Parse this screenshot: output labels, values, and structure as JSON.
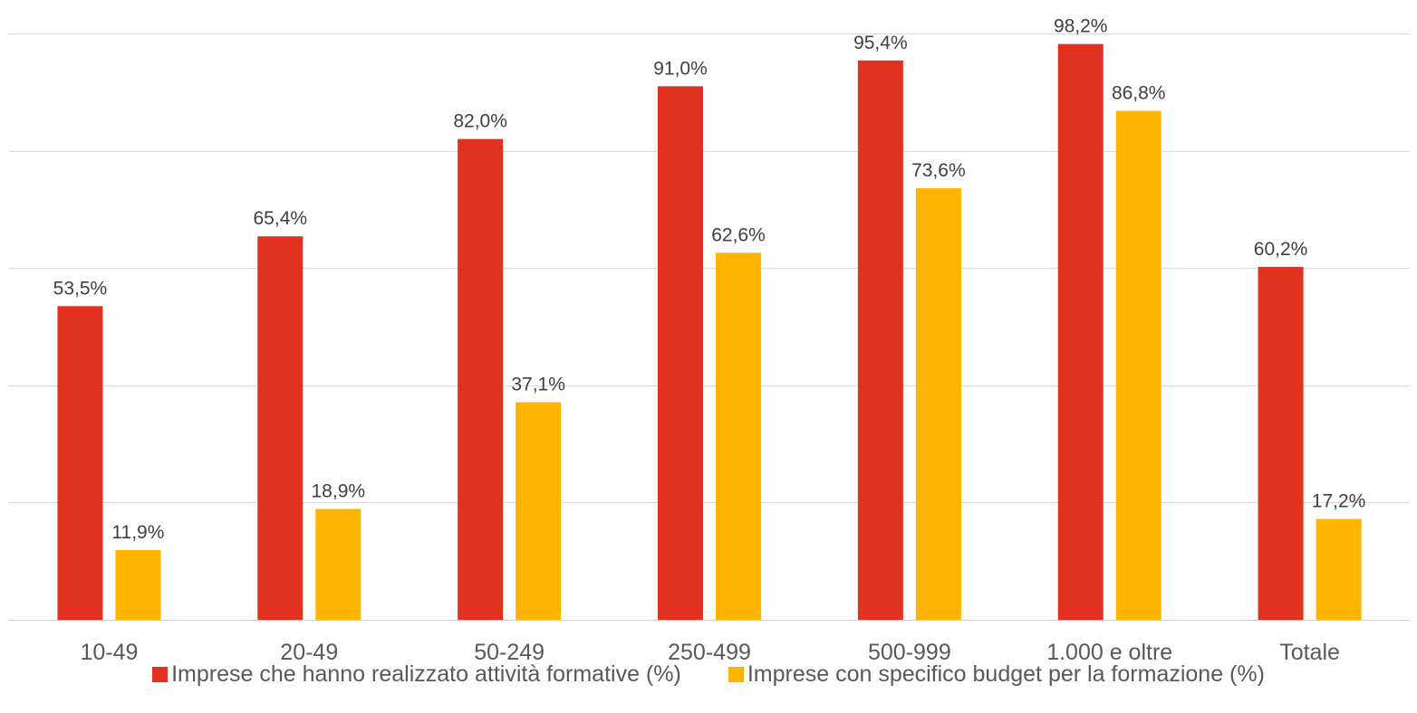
{
  "chart_data": {
    "type": "bar",
    "categories": [
      "10-49",
      "20-49",
      "50-249",
      "250-499",
      "500-999",
      "1.000 e oltre",
      "Totale"
    ],
    "series": [
      {
        "name": "Imprese che hanno realizzato attività formative (%)",
        "color": "#E0321F",
        "values": [
          53.5,
          65.4,
          82.0,
          91.0,
          95.4,
          98.2,
          60.2
        ],
        "labels": [
          "53,5%",
          "65,4%",
          "82,0%",
          "91,0%",
          "95,4%",
          "98,2%",
          "60,2%"
        ]
      },
      {
        "name": "Imprese con specifico budget per la formazione (%)",
        "color": "#FFB400",
        "values": [
          11.9,
          18.9,
          37.1,
          62.6,
          73.6,
          86.8,
          17.2
        ],
        "labels": [
          "11,9%",
          "18,9%",
          "37,1%",
          "62,6%",
          "73,6%",
          "86,8%",
          "17,2%"
        ]
      }
    ],
    "ylim": [
      0,
      100
    ],
    "grid": true,
    "legend_position": "bottom",
    "title": "",
    "xlabel": "",
    "ylabel": ""
  }
}
